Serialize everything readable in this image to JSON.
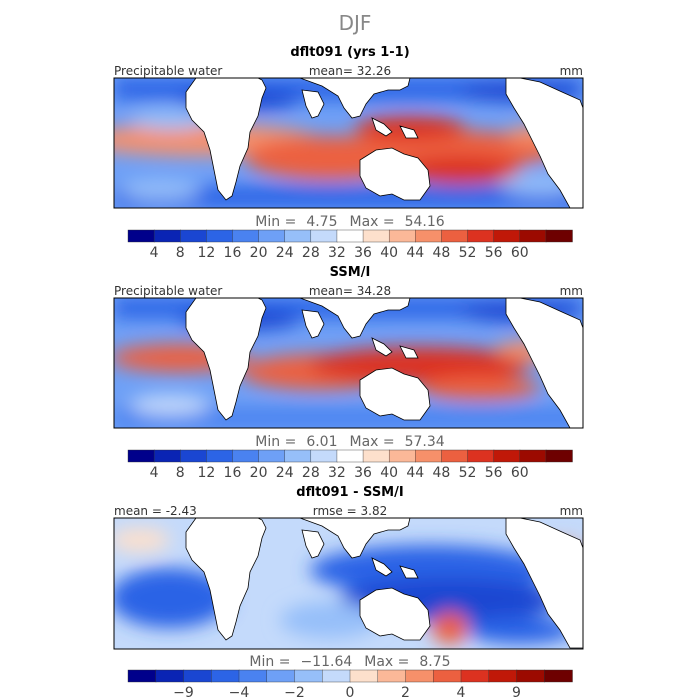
{
  "figure": {
    "title": "DJF"
  },
  "panels": [
    {
      "id": "model",
      "title": "dflt091 (yrs 1-1)",
      "left_label": "Precipitable water",
      "center_label": "mean=   32.26",
      "units": "mm",
      "stats": {
        "min_label": "Min =",
        "min": "4.75",
        "max_label": "Max =",
        "max": "54.16"
      }
    },
    {
      "id": "obs",
      "title": "SSM/I",
      "left_label": "Precipitable water",
      "center_label": "mean=   34.28",
      "units": "mm",
      "stats": {
        "min_label": "Min =",
        "min": "6.01",
        "max_label": "Max =",
        "max": "57.34"
      }
    },
    {
      "id": "diff",
      "title": "dflt091 - SSM/I",
      "left_label": "mean =   -2.43",
      "center_label": "rmse =    3.82",
      "units": "mm",
      "stats": {
        "min_label": "Min =",
        "min": "−11.64",
        "max_label": "Max =",
        "max": "8.75"
      }
    }
  ],
  "chart_data": [
    {
      "type": "heatmap",
      "title": "dflt091 (yrs 1-1)",
      "variable": "Precipitable water",
      "units": "mm",
      "mean": 32.26,
      "min": 4.75,
      "max": 54.16,
      "colorbar": {
        "ticks": [
          "4",
          "8",
          "12",
          "16",
          "20",
          "24",
          "28",
          "32",
          "36",
          "40",
          "44",
          "48",
          "52",
          "56",
          "60"
        ],
        "colors": [
          "#00008b",
          "#0a24b4",
          "#1a46d2",
          "#2c64e6",
          "#4a82f0",
          "#6ea0f6",
          "#96bff9",
          "#c4dafb",
          "#ffffff",
          "#fde0cc",
          "#fbb898",
          "#f6906a",
          "#ec6040",
          "#dc3220",
          "#c01808",
          "#9c0a00",
          "#6e0000"
        ]
      }
    },
    {
      "type": "heatmap",
      "title": "SSM/I",
      "variable": "Precipitable water",
      "units": "mm",
      "mean": 34.28,
      "min": 6.01,
      "max": 57.34,
      "colorbar": {
        "ticks": [
          "4",
          "8",
          "12",
          "16",
          "20",
          "24",
          "28",
          "32",
          "36",
          "40",
          "44",
          "48",
          "52",
          "56",
          "60"
        ],
        "colors": [
          "#00008b",
          "#0a24b4",
          "#1a46d2",
          "#2c64e6",
          "#4a82f0",
          "#6ea0f6",
          "#96bff9",
          "#c4dafb",
          "#ffffff",
          "#fde0cc",
          "#fbb898",
          "#f6906a",
          "#ec6040",
          "#dc3220",
          "#c01808",
          "#9c0a00",
          "#6e0000"
        ]
      }
    },
    {
      "type": "heatmap",
      "title": "dflt091 - SSM/I",
      "units": "mm",
      "mean": -2.43,
      "rmse": 3.82,
      "min": -11.64,
      "max": 8.75,
      "colorbar": {
        "ticks": [
          "−9",
          "−4",
          "−2",
          "0",
          "2",
          "4",
          "9"
        ],
        "colors": [
          "#00008b",
          "#0a24b4",
          "#1a46d2",
          "#2c64e6",
          "#4a82f0",
          "#6ea0f6",
          "#96bff9",
          "#c4dafb",
          "#fde0cc",
          "#fbb898",
          "#f6906a",
          "#ec6040",
          "#dc3220",
          "#c01808",
          "#9c0a00",
          "#6e0000"
        ]
      }
    }
  ]
}
